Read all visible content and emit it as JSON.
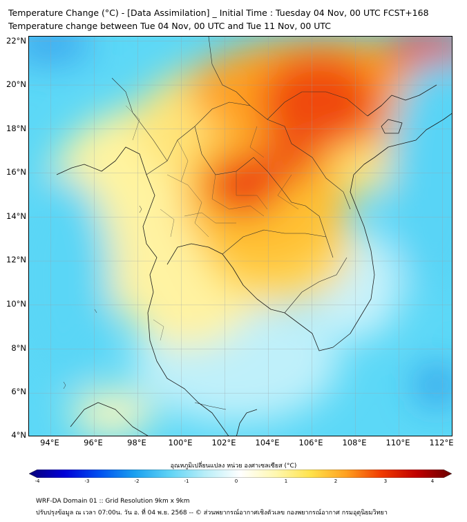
{
  "title_line1": "Temperature Change (°C) - [Data Assimilation] _ Initial Time : Tuesday 04 Nov, 00 UTC FCST+168",
  "title_line2": "Temperature change between Tue 04 Nov, 00 UTC and Tue 11 Nov, 00 UTC",
  "lat_labels": [
    "22°N",
    "20°N",
    "18°N",
    "16°N",
    "14°N",
    "12°N",
    "10°N",
    "8°N",
    "6°N",
    "4°N"
  ],
  "lon_labels": [
    "94°E",
    "96°E",
    "98°E",
    "100°E",
    "102°E",
    "104°E",
    "106°E",
    "108°E",
    "110°E",
    "112°E"
  ],
  "map_extent": {
    "lon_min": 93,
    "lon_max": 112.5,
    "lat_min": 4,
    "lat_max": 22.2
  },
  "colorbar": {
    "title": "อุณหภูมิเปลี่ยนแปลง หน่วย องศาเซลเซียส (°C)",
    "min": -4,
    "max": 4,
    "ticks": [
      "-4",
      "-3",
      "-2",
      "-1",
      "0",
      "1",
      "2",
      "3",
      "4"
    ],
    "colors": [
      "#08007a",
      "#0000d6",
      "#0050f0",
      "#1aa0f0",
      "#5fd3f5",
      "#b8eef8",
      "#ffffff",
      "#fff8b0",
      "#ffe24a",
      "#ffa020",
      "#f03a00",
      "#c00000",
      "#6a0000"
    ]
  },
  "field_colors": {
    "cold": "#5cd8f7",
    "neutral": "#cff3fb",
    "mild": "#fff6a6",
    "warm": "#ffcb38",
    "hot": "#ff7a18",
    "very_hot": "#e82300"
  },
  "footer_line1": "WRF-DA Domain 01 :: Grid Resolution 9km x 9km",
  "footer_line2": "ปรับปรุงข้อมูล ณ เวลา 07:00น. วัน อ. ที่ 04 พ.ย. 2568 -- © ส่วนพยากรณ์อากาศเชิงตัวเลข กองพยากรณ์อากาศ กรมอุตุนิยมวิทยา"
}
